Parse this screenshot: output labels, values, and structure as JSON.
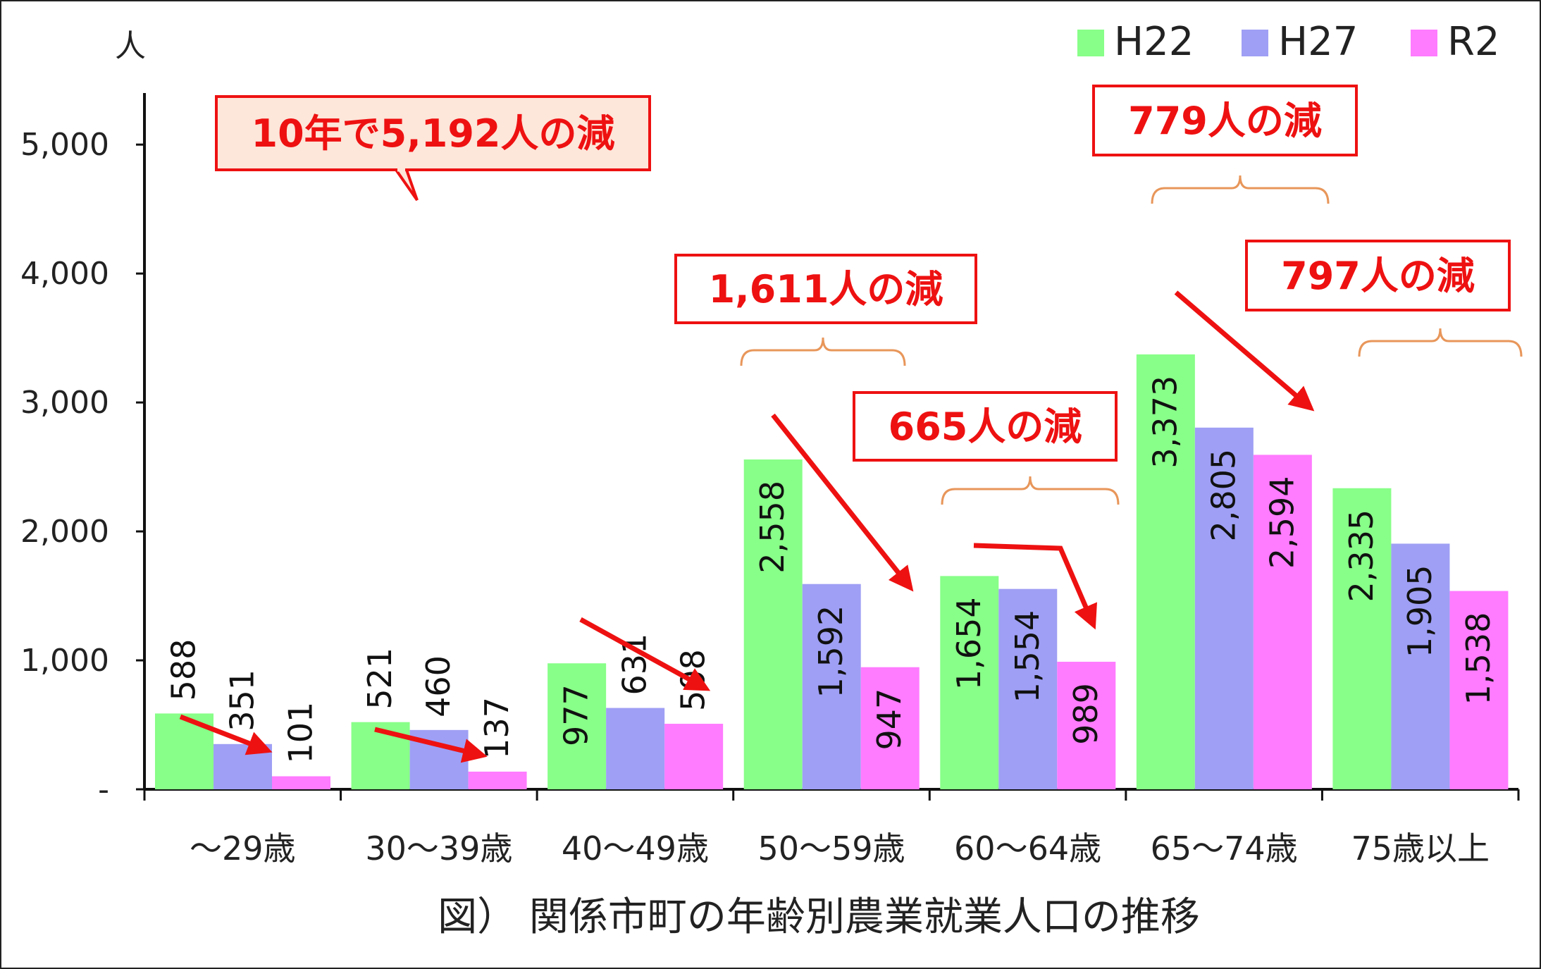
{
  "chart_data": {
    "type": "bar",
    "title": "図） 関係市町の年齢別農業就業人口の推移",
    "ylabel": "人",
    "ylim": [
      0,
      5400
    ],
    "yticks": [
      "-",
      "1,000",
      "2,000",
      "3,000",
      "4,000",
      "5,000"
    ],
    "ytick_values": [
      0,
      1000,
      2000,
      3000,
      4000,
      5000
    ],
    "grid": false,
    "legend_position": "top-right",
    "categories": [
      "～29歳",
      "30～39歳",
      "40～49歳",
      "50～59歳",
      "60～64歳",
      "65～74歳",
      "75歳以上"
    ],
    "series": [
      {
        "name": "H22",
        "color": "#88ff88",
        "values": [
          588,
          521,
          977,
          2558,
          1654,
          3373,
          2335
        ],
        "labels": [
          "588",
          "521",
          "977",
          "2,558",
          "1,654",
          "3,373",
          "2,335"
        ]
      },
      {
        "name": "H27",
        "color": "#9f9ff5",
        "values": [
          351,
          460,
          631,
          1592,
          1554,
          2805,
          1905
        ],
        "labels": [
          "351",
          "460",
          "631",
          "1,592",
          "1,554",
          "2,805",
          "1,905"
        ]
      },
      {
        "name": "R2",
        "color": "#ff7bff",
        "values": [
          101,
          137,
          508,
          947,
          989,
          2594,
          1538
        ],
        "labels": [
          "101",
          "137",
          "508",
          "947",
          "989",
          "2,594",
          "1,538"
        ]
      }
    ],
    "annotations": [
      {
        "text": "10年で5,192人の減",
        "style": "callout"
      },
      {
        "text": "1,611人の減",
        "style": "box"
      },
      {
        "text": "665人の減",
        "style": "box"
      },
      {
        "text": "779人の減",
        "style": "box"
      },
      {
        "text": "797人の減",
        "style": "box"
      }
    ],
    "annotation_color": "#ee1111"
  }
}
